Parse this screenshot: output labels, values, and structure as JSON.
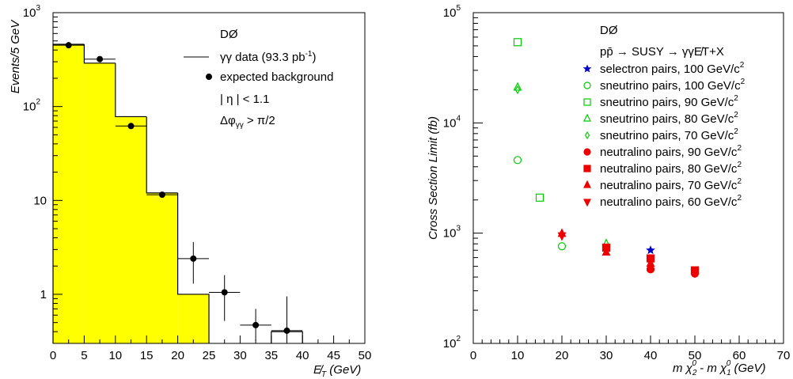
{
  "chart_data": [
    {
      "type": "bar",
      "yscale": "log",
      "xlim": [
        0,
        50
      ],
      "ylim": [
        0.3,
        1000
      ],
      "xlabel": "E̸T (GeV)",
      "ylabel": "Events/5 GeV",
      "x_ticks": [
        "0",
        "5",
        "10",
        "15",
        "20",
        "25",
        "30",
        "35",
        "40",
        "45",
        "50"
      ],
      "y_ticks": [
        {
          "value": 1000,
          "base": "10",
          "exp": "3"
        },
        {
          "value": 100,
          "base": "10",
          "exp": "2"
        },
        {
          "value": 10,
          "base": "10",
          "exp": ""
        },
        {
          "value": 1,
          "base": "1",
          "exp": ""
        }
      ],
      "bin_edges": [
        0,
        5,
        10,
        15,
        20,
        25,
        30,
        35,
        40,
        45,
        50
      ],
      "series": [
        {
          "name": "γγ data (93.3  pb⁻¹)",
          "kind": "histogram",
          "color": "#ffff00",
          "values": [
            460,
            290,
            78,
            12,
            1,
            0,
            0,
            0.4,
            0,
            0
          ]
        },
        {
          "name": "expected background",
          "kind": "points",
          "x": [
            2.5,
            7.5,
            12.5,
            17.5,
            22.5,
            27.5,
            32.5,
            37.5
          ],
          "y": [
            450,
            320,
            62,
            11.5,
            2.4,
            1.05,
            0.47,
            0.41
          ],
          "y_err_low": [
            420,
            300,
            58,
            10.8,
            1.3,
            0.52,
            0.32,
            0.3
          ],
          "y_err_high": [
            480,
            340,
            66,
            12.2,
            3.6,
            1.6,
            0.7,
            0.95
          ]
        }
      ],
      "legend": {
        "title": "DØ",
        "entries": [
          "γγ data (93.3  pb",
          "-1",
          ")",
          "expected background",
          "| η | < 1.1",
          "Δφ",
          "γγ",
          " > π/2"
        ]
      }
    },
    {
      "type": "scatter",
      "yscale": "log",
      "xlim": [
        0,
        70
      ],
      "ylim": [
        100,
        100000
      ],
      "xlabel": "m χ₂⁰ - m χ₁⁰ (GeV)",
      "ylabel": "Cross Section Limit (fb)",
      "x_ticks": [
        "0",
        "10",
        "20",
        "30",
        "40",
        "50",
        "60",
        "70"
      ],
      "y_ticks": [
        {
          "value": 100000,
          "base": "10",
          "exp": "5"
        },
        {
          "value": 10000,
          "base": "10",
          "exp": "4"
        },
        {
          "value": 1000,
          "base": "10",
          "exp": "3"
        },
        {
          "value": 100,
          "base": "10",
          "exp": "2"
        }
      ],
      "legend_title": "DØ",
      "process_label": "pp̄ → SUSY → γγE̸T+X",
      "series": [
        {
          "name": "selectron pairs, 100 GeV/c²",
          "label": "selectron pairs, 100 GeV/c",
          "marker": "star",
          "color": "#0000cc",
          "filled": true,
          "x": [
            40
          ],
          "y": [
            700
          ]
        },
        {
          "name": "sneutrino pairs, 100 GeV/c²",
          "label": "sneutrino pairs, 100 GeV/c",
          "marker": "circle",
          "color": "#00cc00",
          "filled": false,
          "x": [
            10,
            20
          ],
          "y": [
            4600,
            760
          ]
        },
        {
          "name": "sneutrino pairs, 90 GeV/c²",
          "label": "sneutrino pairs, 90 GeV/c",
          "marker": "square",
          "color": "#00cc00",
          "filled": false,
          "x": [
            10,
            15
          ],
          "y": [
            54000,
            2100
          ]
        },
        {
          "name": "sneutrino pairs, 80 GeV/c²",
          "label": "sneutrino pairs, 80 GeV/c",
          "marker": "triangle-up",
          "color": "#00cc00",
          "filled": false,
          "x": [
            10,
            30
          ],
          "y": [
            21000,
            800
          ]
        },
        {
          "name": "sneutrino pairs, 70 GeV/c²",
          "label": "sneutrino pairs, 70 GeV/c",
          "marker": "diamond",
          "color": "#00cc00",
          "filled": false,
          "x": [
            10
          ],
          "y": [
            20000
          ]
        },
        {
          "name": "neutralino pairs, 90 GeV/c²",
          "label": "neutralino pairs, 90 GeV/c",
          "marker": "circle",
          "color": "#ee0000",
          "filled": true,
          "x": [
            40,
            50
          ],
          "y": [
            470,
            430
          ]
        },
        {
          "name": "neutralino pairs, 80 GeV/c²",
          "label": "neutralino pairs, 80 GeV/c",
          "marker": "square",
          "color": "#ee0000",
          "filled": true,
          "x": [
            30,
            40,
            50
          ],
          "y": [
            740,
            590,
            460
          ]
        },
        {
          "name": "neutralino pairs, 70 GeV/c²",
          "label": "neutralino pairs, 70 GeV/c",
          "marker": "triangle-up",
          "color": "#ee0000",
          "filled": true,
          "x": [
            20,
            30,
            40
          ],
          "y": [
            990,
            670,
            530
          ]
        },
        {
          "name": "neutralino pairs, 60 GeV/c²",
          "label": "neutralino pairs, 60 GeV/c",
          "marker": "triangle-down",
          "color": "#ee0000",
          "filled": true,
          "x": [
            20,
            30,
            50
          ],
          "y": [
            950,
            730,
            440
          ]
        }
      ],
      "unit_superscript": "2"
    }
  ]
}
